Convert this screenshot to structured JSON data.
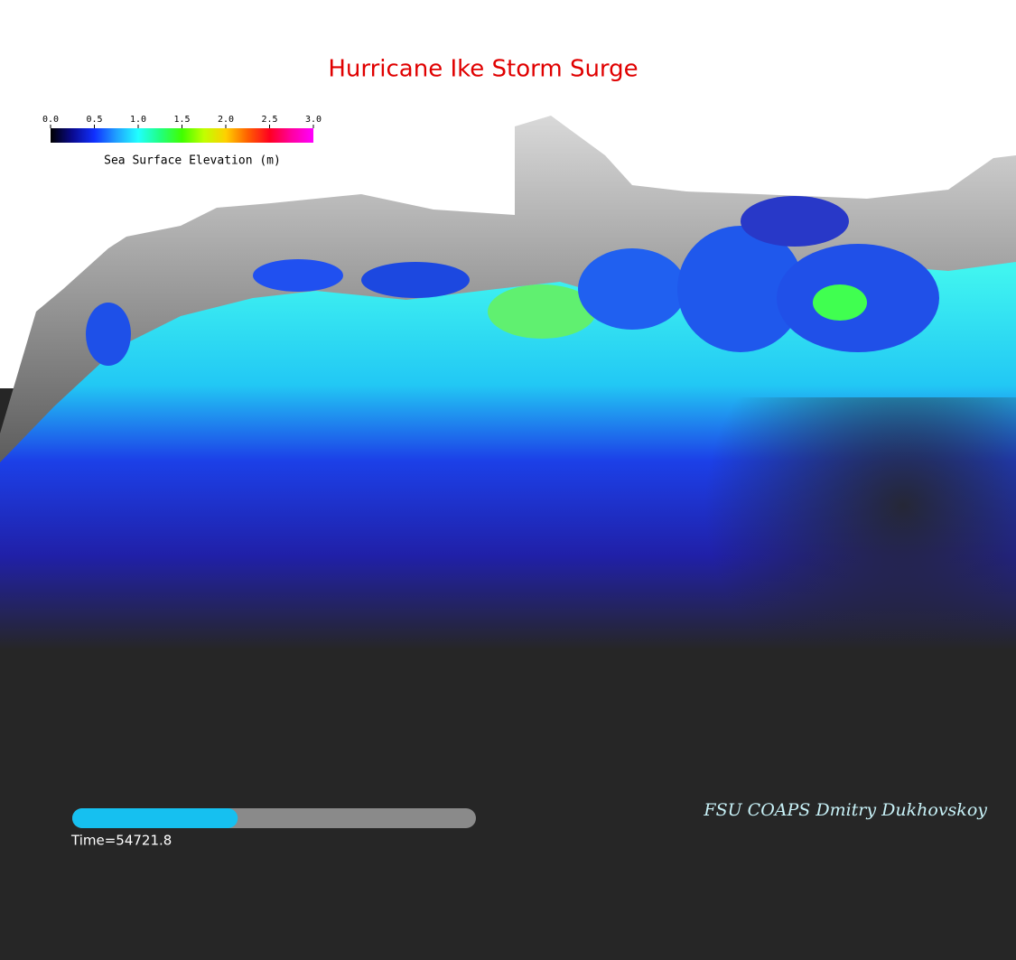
{
  "title": "Hurricane Ike Storm Surge",
  "colorbar": {
    "label": "Sea Surface Elevation (m)",
    "lim": [
      0,
      3
    ],
    "ticks": [
      {
        "value": 0,
        "label": "0.0"
      },
      {
        "value": 0.5,
        "label": "0.5"
      },
      {
        "value": 1,
        "label": "1.0"
      },
      {
        "value": 1.5,
        "label": "1.5"
      },
      {
        "value": 2,
        "label": "2.0"
      },
      {
        "value": 2.5,
        "label": "2.5"
      },
      {
        "value": 3,
        "label": "3.0"
      }
    ],
    "colors": [
      "#000000",
      "#0a0a90",
      "#1030ff",
      "#20a0ff",
      "#20ffff",
      "#20ff80",
      "#40ff00",
      "#c0ff00",
      "#ffd000",
      "#ff6000",
      "#ff0020",
      "#ff00a0",
      "#ff00ff"
    ]
  },
  "time_label": "Time=54721.8",
  "progress": 0.41,
  "credit": "FSU COAPS Dmitry Dukhovskoy"
}
